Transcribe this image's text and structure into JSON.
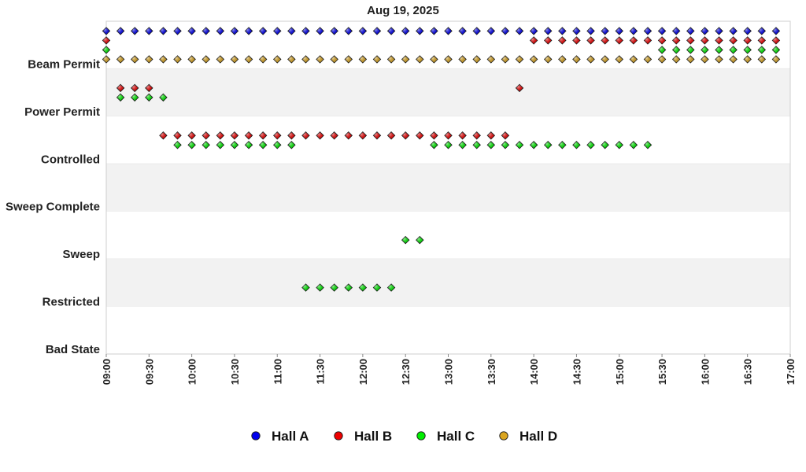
{
  "chart_data": {
    "type": "scatter",
    "title": "Aug 19, 2025",
    "xlabel": "",
    "ylabel": "",
    "x_axis": {
      "min": "09:00",
      "max": "17:00",
      "ticks": [
        "09:00",
        "09:30",
        "10:00",
        "10:30",
        "11:00",
        "11:30",
        "12:00",
        "12:30",
        "13:00",
        "13:30",
        "14:00",
        "14:30",
        "15:00",
        "15:30",
        "16:00",
        "16:30",
        "17:00"
      ]
    },
    "y_categories": [
      "Beam Permit",
      "Power Permit",
      "Controlled",
      "Sweep Complete",
      "Sweep",
      "Restricted",
      "Bad State"
    ],
    "grid": "alternating horizontal bands",
    "legend_position": "bottom",
    "series": [
      {
        "name": "Hall A",
        "color": "#0000ee",
        "segments": [
          {
            "state": "Beam Permit",
            "start": "09:00",
            "end": "16:50",
            "step_minutes": 10
          }
        ]
      },
      {
        "name": "Hall B",
        "color": "#ee0000",
        "segments": [
          {
            "state": "Beam Permit",
            "start": "09:00",
            "end": "09:00",
            "step_minutes": 10
          },
          {
            "state": "Power Permit",
            "start": "09:10",
            "end": "09:30",
            "step_minutes": 10
          },
          {
            "state": "Controlled",
            "start": "09:40",
            "end": "13:40",
            "step_minutes": 10
          },
          {
            "state": "Power Permit",
            "start": "13:50",
            "end": "13:50",
            "step_minutes": 10
          },
          {
            "state": "Beam Permit",
            "start": "14:00",
            "end": "16:50",
            "step_minutes": 10
          }
        ]
      },
      {
        "name": "Hall C",
        "color": "#00ee00",
        "segments": [
          {
            "state": "Beam Permit",
            "start": "09:00",
            "end": "09:00",
            "step_minutes": 10
          },
          {
            "state": "Power Permit",
            "start": "09:10",
            "end": "09:40",
            "step_minutes": 10
          },
          {
            "state": "Controlled",
            "start": "09:50",
            "end": "11:10",
            "step_minutes": 10
          },
          {
            "state": "Restricted",
            "start": "11:20",
            "end": "12:20",
            "step_minutes": 10
          },
          {
            "state": "Sweep",
            "start": "12:30",
            "end": "12:40",
            "step_minutes": 10
          },
          {
            "state": "Controlled",
            "start": "12:50",
            "end": "15:20",
            "step_minutes": 10
          },
          {
            "state": "Beam Permit",
            "start": "15:30",
            "end": "16:50",
            "step_minutes": 10
          }
        ]
      },
      {
        "name": "Hall D",
        "color": "#daa520",
        "segments": [
          {
            "state": "Beam Permit",
            "start": "09:00",
            "end": "16:50",
            "step_minutes": 10
          }
        ]
      }
    ]
  }
}
